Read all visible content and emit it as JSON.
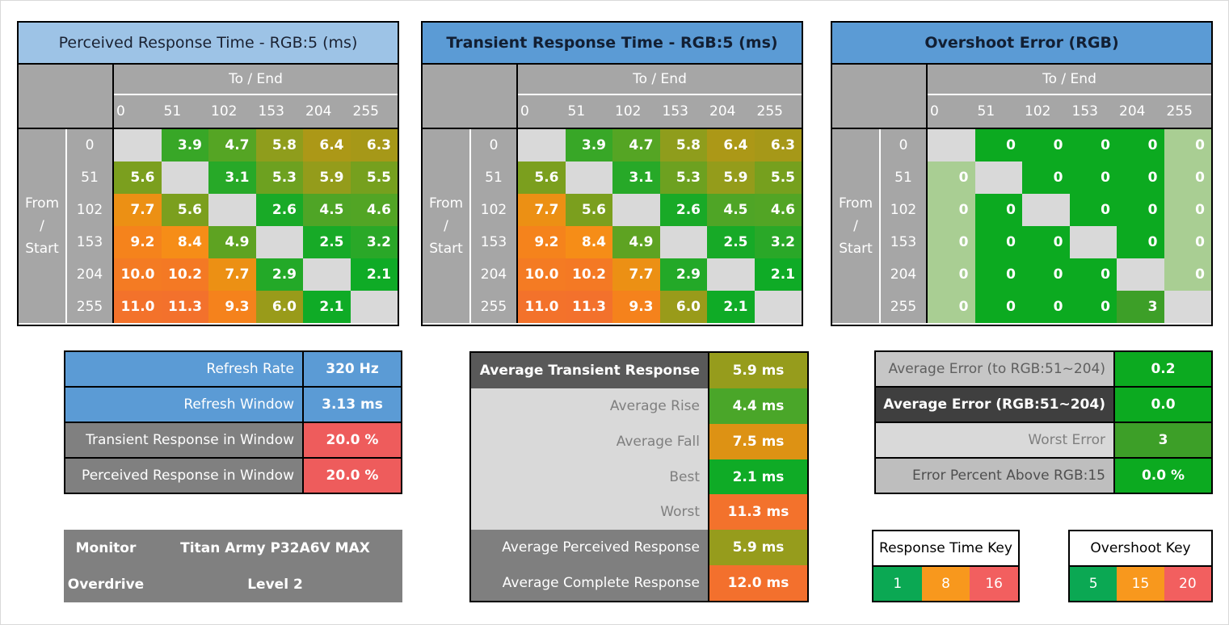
{
  "axis": {
    "to_label": "To / End",
    "from_label_lines": [
      "From",
      "/",
      "Start"
    ],
    "levels": [
      "0",
      "51",
      "102",
      "153",
      "204",
      "255"
    ]
  },
  "tables": [
    {
      "title": "Perceived Response Time - RGB:5 (ms)",
      "title_bg": "#9DC3E6",
      "title_color": "#1a2233",
      "title_bold": false,
      "matrix": "response"
    },
    {
      "title": "Transient Response Time - RGB:5 (ms)",
      "title_bg": "#5B9BD5",
      "title_color": "#121f33",
      "title_bold": true,
      "matrix": "response"
    },
    {
      "title": "Overshoot Error (RGB)",
      "title_bg": "#5B9BD5",
      "title_color": "#121f33",
      "title_bold": true,
      "matrix": "overshoot"
    }
  ],
  "response_display": [
    [
      "",
      "3.9",
      "4.7",
      "5.8",
      "6.4",
      "6.3"
    ],
    [
      "5.6",
      "",
      "3.1",
      "5.3",
      "5.9",
      "5.5"
    ],
    [
      "7.7",
      "5.6",
      "",
      "2.6",
      "4.5",
      "4.6"
    ],
    [
      "9.2",
      "8.4",
      "4.9",
      "",
      "2.5",
      "3.2"
    ],
    [
      "10.0",
      "10.2",
      "7.7",
      "2.9",
      "",
      "2.1"
    ],
    [
      "11.0",
      "11.3",
      "9.3",
      "6.0",
      "2.1",
      ""
    ]
  ],
  "response_colors": [
    [
      null,
      "#38a727",
      "#55a524",
      "#8f9d1c",
      "#ac9817",
      "#a69818"
    ],
    [
      "#7b9f1e",
      null,
      "#27a928",
      "#6da120",
      "#949c1b",
      "#76a01e"
    ],
    [
      "#ec9014",
      "#7b9f1e",
      null,
      "#19aa27",
      "#4fa526",
      "#52a525"
    ],
    [
      "#f5831c",
      "#f68d17",
      "#5ea322",
      null,
      "#17aa27",
      "#2aa828"
    ],
    [
      "#f47b23",
      "#f47924",
      "#ec9014",
      "#23a928",
      null,
      "#0fab26"
    ],
    [
      "#f3722b",
      "#f3712c",
      "#f5821c",
      "#999b1a",
      "#0fab26",
      null
    ]
  ],
  "overshoot_display": [
    [
      "",
      "0",
      "0",
      "0",
      "0",
      "0"
    ],
    [
      "0",
      "",
      "0",
      "0",
      "0",
      "0"
    ],
    [
      "0",
      "0",
      "",
      "0",
      "0",
      "0"
    ],
    [
      "0",
      "0",
      "0",
      "",
      "0",
      "0"
    ],
    [
      "0",
      "0",
      "0",
      "0",
      "",
      "0"
    ],
    [
      "0",
      "0",
      "0",
      "0",
      "3",
      ""
    ]
  ],
  "overshoot_colors": [
    [
      null,
      "#0caa20",
      "#0caa20",
      "#0caa20",
      "#0caa20",
      "#a9ce93"
    ],
    [
      "#a9ce93",
      null,
      "#0caa20",
      "#0caa20",
      "#0caa20",
      "#a9ce93"
    ],
    [
      "#a9ce93",
      "#0caa20",
      null,
      "#0caa20",
      "#0caa20",
      "#a9ce93"
    ],
    [
      "#a9ce93",
      "#0caa20",
      "#0caa20",
      null,
      "#0caa20",
      "#a9ce93"
    ],
    [
      "#a9ce93",
      "#0caa20",
      "#0caa20",
      "#0caa20",
      null,
      "#a9ce93"
    ],
    [
      "#a9ce93",
      "#0caa20",
      "#0caa20",
      "#0caa20",
      "#3d9f28",
      null
    ]
  ],
  "left_summary": {
    "rows": [
      {
        "label": "Refresh Rate",
        "value": "320 Hz",
        "label_bg": "#5B9BD5",
        "label_color": "#ffffff",
        "label_bold": false,
        "value_bg": "#5B9BD5"
      },
      {
        "label": "Refresh Window",
        "value": "3.13 ms",
        "label_bg": "#5B9BD5",
        "label_color": "#ffffff",
        "label_bold": false,
        "value_bg": "#5B9BD5"
      },
      {
        "label": "Transient Response in Window",
        "value": "20.0 %",
        "label_bg": "#808080",
        "label_color": "#ffffff",
        "label_bold": false,
        "value_bg": "#ee5c5c"
      },
      {
        "label": "Perceived Response in Window",
        "value": "20.0 %",
        "label_bg": "#808080",
        "label_color": "#ffffff",
        "label_bold": false,
        "value_bg": "#ee5c5c"
      }
    ]
  },
  "middle_summary": {
    "rows": [
      {
        "label": "Average Transient Response",
        "value": "5.9 ms",
        "label_bg": "#595959",
        "label_color": "#ffffff",
        "label_bold": true,
        "value_bg": "#969c1c"
      },
      {
        "label": "Average Rise",
        "value": "4.4 ms",
        "label_bg": "#d9d9d9",
        "label_color": "#7f7f7f",
        "label_bold": false,
        "value_bg": "#4aa629"
      },
      {
        "label": "Average Fall",
        "value": "7.5 ms",
        "label_bg": "#d9d9d9",
        "label_color": "#7f7f7f",
        "label_bold": false,
        "value_bg": "#dd9214"
      },
      {
        "label": "Best",
        "value": "2.1 ms",
        "label_bg": "#d9d9d9",
        "label_color": "#7f7f7f",
        "label_bold": false,
        "value_bg": "#0fab26"
      },
      {
        "label": "Worst",
        "value": "11.3 ms",
        "label_bg": "#d9d9d9",
        "label_color": "#7f7f7f",
        "label_bold": false,
        "value_bg": "#f3722c"
      },
      {
        "label": "Average Perceived Response",
        "value": "5.9 ms",
        "label_bg": "#7f7f7f",
        "label_color": "#ffffff",
        "label_bold": false,
        "value_bg": "#969c1c"
      },
      {
        "label": "Average Complete Response",
        "value": "12.0 ms",
        "label_bg": "#7f7f7f",
        "label_color": "#ffffff",
        "label_bold": false,
        "value_bg": "#f3702d"
      }
    ]
  },
  "right_summary": {
    "rows": [
      {
        "label": "Average Error (to RGB:51~204)",
        "value": "0.2",
        "label_bg": "#c6c6c6",
        "label_color": "#5f5f5f",
        "label_bold": false,
        "value_bg": "#0caa20"
      },
      {
        "label": "Average Error (RGB:51~204)",
        "value": "0.0",
        "label_bg": "#3f3f3f",
        "label_color": "#ffffff",
        "label_bold": true,
        "value_bg": "#0caa20"
      },
      {
        "label": "Worst Error",
        "value": "3",
        "label_bg": "#d9d9d9",
        "label_color": "#7f7f7f",
        "label_bold": false,
        "value_bg": "#3d9f28"
      },
      {
        "label": "Error Percent Above RGB:15",
        "value": "0.0 %",
        "label_bg": "#bebebe",
        "label_color": "#4f4f4f",
        "label_bold": false,
        "value_bg": "#0caa20"
      }
    ]
  },
  "monitor_info": {
    "bg": "#808080",
    "rows": [
      {
        "label": "Monitor",
        "value": "Titan Army P32A6V MAX"
      },
      {
        "label": "Overdrive",
        "value": "Level 2"
      }
    ]
  },
  "keys": [
    {
      "title": "Response Time Key",
      "cells": [
        {
          "label": "1",
          "bg": "#0ba853"
        },
        {
          "label": "8",
          "bg": "#f8981d"
        },
        {
          "label": "16",
          "bg": "#f25f5f"
        }
      ]
    },
    {
      "title": "Overshoot Key",
      "cells": [
        {
          "label": "5",
          "bg": "#0ba853"
        },
        {
          "label": "15",
          "bg": "#f8981d"
        },
        {
          "label": "20",
          "bg": "#f25f5f"
        }
      ]
    }
  ],
  "colors": {
    "header_gray": "#a6a6a6",
    "diagonal_gray": "#d9d9d9",
    "accent_blue": "#5B9BD5",
    "light_blue": "#9DC3E6",
    "alert_red": "#ee5c5c",
    "good_green": "#0caa20",
    "edge_light_green": "#a9ce93"
  },
  "chart_data": [
    {
      "type": "heatmap",
      "title": "Perceived Response Time - RGB:5 (ms)",
      "xlabel": "To / End",
      "ylabel": "From / Start",
      "x": [
        0,
        51,
        102,
        153,
        204,
        255
      ],
      "y": [
        0,
        51,
        102,
        153,
        204,
        255
      ],
      "units": "ms",
      "values": [
        [
          null,
          3.9,
          4.7,
          5.8,
          6.4,
          6.3
        ],
        [
          5.6,
          null,
          3.1,
          5.3,
          5.9,
          5.5
        ],
        [
          7.7,
          5.6,
          null,
          2.6,
          4.5,
          4.6
        ],
        [
          9.2,
          8.4,
          4.9,
          null,
          2.5,
          3.2
        ],
        [
          10.0,
          10.2,
          7.7,
          2.9,
          null,
          2.1
        ],
        [
          11.0,
          11.3,
          9.3,
          6.0,
          2.1,
          null
        ]
      ],
      "color_key": {
        "labels": [
          1,
          8,
          16
        ],
        "colors": [
          "#0ba853",
          "#f8981d",
          "#f25f5f"
        ]
      }
    },
    {
      "type": "heatmap",
      "title": "Transient Response Time - RGB:5 (ms)",
      "xlabel": "To / End",
      "ylabel": "From / Start",
      "x": [
        0,
        51,
        102,
        153,
        204,
        255
      ],
      "y": [
        0,
        51,
        102,
        153,
        204,
        255
      ],
      "units": "ms",
      "values": [
        [
          null,
          3.9,
          4.7,
          5.8,
          6.4,
          6.3
        ],
        [
          5.6,
          null,
          3.1,
          5.3,
          5.9,
          5.5
        ],
        [
          7.7,
          5.6,
          null,
          2.6,
          4.5,
          4.6
        ],
        [
          9.2,
          8.4,
          4.9,
          null,
          2.5,
          3.2
        ],
        [
          10.0,
          10.2,
          7.7,
          2.9,
          null,
          2.1
        ],
        [
          11.0,
          11.3,
          9.3,
          6.0,
          2.1,
          null
        ]
      ],
      "color_key": {
        "labels": [
          1,
          8,
          16
        ],
        "colors": [
          "#0ba853",
          "#f8981d",
          "#f25f5f"
        ]
      }
    },
    {
      "type": "heatmap",
      "title": "Overshoot Error (RGB)",
      "xlabel": "To / End",
      "ylabel": "From / Start",
      "x": [
        0,
        51,
        102,
        153,
        204,
        255
      ],
      "y": [
        0,
        51,
        102,
        153,
        204,
        255
      ],
      "units": "RGB",
      "values": [
        [
          null,
          0,
          0,
          0,
          0,
          0
        ],
        [
          0,
          null,
          0,
          0,
          0,
          0
        ],
        [
          0,
          0,
          null,
          0,
          0,
          0
        ],
        [
          0,
          0,
          0,
          null,
          0,
          0
        ],
        [
          0,
          0,
          0,
          0,
          null,
          0
        ],
        [
          0,
          0,
          0,
          0,
          3,
          null
        ]
      ],
      "color_key": {
        "labels": [
          5,
          15,
          20
        ],
        "colors": [
          "#0ba853",
          "#f8981d",
          "#f25f5f"
        ]
      }
    },
    {
      "type": "table",
      "title": "Summary",
      "rows": [
        [
          "Refresh Rate",
          "320 Hz"
        ],
        [
          "Refresh Window",
          "3.13 ms"
        ],
        [
          "Transient Response in Window",
          "20.0 %"
        ],
        [
          "Perceived Response in Window",
          "20.0 %"
        ],
        [
          "Average Transient Response",
          "5.9 ms"
        ],
        [
          "Average Rise",
          "4.4 ms"
        ],
        [
          "Average Fall",
          "7.5 ms"
        ],
        [
          "Best",
          "2.1 ms"
        ],
        [
          "Worst",
          "11.3 ms"
        ],
        [
          "Average Perceived Response",
          "5.9 ms"
        ],
        [
          "Average Complete Response",
          "12.0 ms"
        ],
        [
          "Average Error (to RGB:51~204)",
          "0.2"
        ],
        [
          "Average Error (RGB:51~204)",
          "0.0"
        ],
        [
          "Worst Error",
          "3"
        ],
        [
          "Error Percent Above RGB:15",
          "0.0 %"
        ],
        [
          "Monitor",
          "Titan Army P32A6V MAX"
        ],
        [
          "Overdrive",
          "Level 2"
        ]
      ]
    }
  ]
}
